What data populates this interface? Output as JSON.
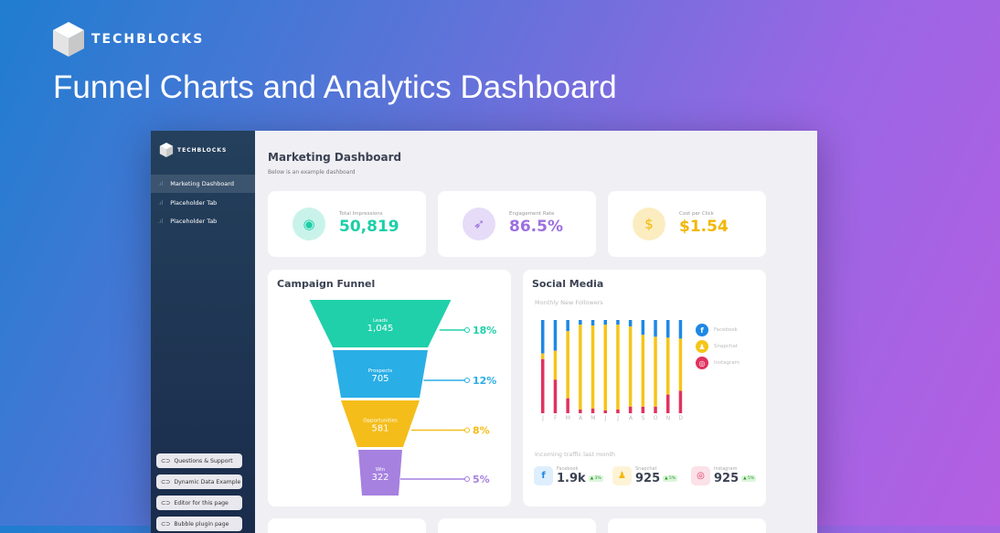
{
  "page": {
    "brand": "TECHBLOCKS",
    "headline": "Funnel Charts and Analytics Dashboard"
  },
  "sidebar": {
    "brand": "TECHBLOCKS",
    "items": [
      {
        "label": "Marketing Dashboard",
        "active": true
      },
      {
        "label": "Placeholder Tab"
      },
      {
        "label": "Placeholder Tab"
      }
    ],
    "buttons": [
      "Questions & Support",
      "Dynamic Data Example",
      "Editor for this page",
      "Bubble plugin page"
    ]
  },
  "main": {
    "title": "Marketing Dashboard",
    "subtitle": "Below is an example dashboard"
  },
  "kpis": [
    {
      "label": "Total Impressions",
      "value": "50,819",
      "icon": "eye-icon",
      "color": "#1ccfa8",
      "bg": "#c9f3ea"
    },
    {
      "label": "Engagement Rate",
      "value": "86.5%",
      "icon": "cursor-icon",
      "color": "#9b6fe0",
      "bg": "#e6dcf8"
    },
    {
      "label": "Cost per Click",
      "value": "$1.54",
      "icon": "dollar-icon",
      "color": "#f2b705",
      "bg": "#fbedc0"
    }
  ],
  "funnel": {
    "title": "Campaign Funnel",
    "stages": [
      {
        "label": "Leads",
        "value": "1,045",
        "pct": "18%",
        "color": "#20d0aa"
      },
      {
        "label": "Prospects",
        "value": "705",
        "pct": "12%",
        "color": "#2aaee6"
      },
      {
        "label": "Opportunities",
        "value": "581",
        "pct": "8%",
        "color": "#f4bd1a"
      },
      {
        "label": "Win",
        "value": "322",
        "pct": "5%",
        "color": "#a681e0"
      }
    ]
  },
  "social": {
    "title": "Social Media",
    "subtitle": "Monthly New Followers",
    "legend": [
      {
        "label": "Facebook",
        "color": "#1e88e5",
        "icon": "facebook-icon"
      },
      {
        "label": "Snapchat",
        "color": "#f5c518",
        "icon": "snapchat-icon"
      },
      {
        "label": "Instagram",
        "color": "#e0325f",
        "icon": "instagram-icon"
      }
    ],
    "traffic_title": "Incoming traffic last month",
    "traffic": [
      {
        "label": "Facebook",
        "value": "1.9k",
        "change": "▲ 3%",
        "color": "#1e88e5",
        "bg": "#deeefc"
      },
      {
        "label": "Snapchat",
        "value": "925",
        "change": "▲ 5%",
        "color": "#f5b800",
        "bg": "#fdf3d6"
      },
      {
        "label": "Instagram",
        "value": "925",
        "change": "▲ 5%",
        "color": "#e0325f",
        "bg": "#fbe1e8"
      }
    ]
  },
  "chart_data": {
    "type": "bar",
    "stacked": true,
    "categories": [
      "J",
      "F",
      "M",
      "A",
      "M",
      "J",
      "J",
      "A",
      "S",
      "O",
      "N",
      "D"
    ],
    "series": [
      {
        "name": "Facebook",
        "color": "#1e88e5",
        "values": [
          36,
          33,
          12,
          5,
          6,
          5,
          5,
          7,
          16,
          18,
          19,
          20
        ]
      },
      {
        "name": "Snapchat",
        "color": "#f5c518",
        "values": [
          6,
          31,
          72,
          91,
          89,
          92,
          91,
          86,
          77,
          75,
          61,
          56
        ]
      },
      {
        "name": "Instagram",
        "color": "#e0325f",
        "values": [
          58,
          36,
          16,
          4,
          5,
          3,
          4,
          7,
          7,
          7,
          20,
          24
        ]
      }
    ],
    "legend": "right"
  }
}
